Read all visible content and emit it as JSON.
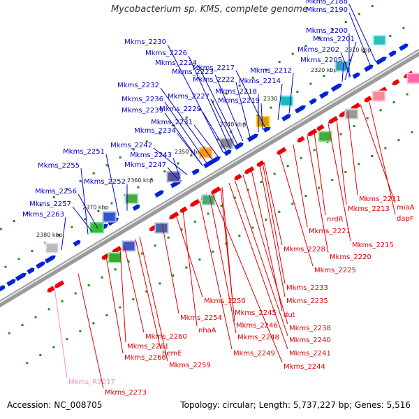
{
  "title": "Mycobacterium sp. KMS, complete genome",
  "footer": {
    "accession": "Accession: NC_008705",
    "topology": "Topology: circular; Length: 5,737,227 bp; Genes: 5,516"
  },
  "colors": {
    "top_label": "#0000cc",
    "bottom_label": "#dd0000",
    "rna_label": "#ff88cc",
    "forward_arrow": "#0022dd",
    "reverse_arrow": "#ee0000",
    "ticks": "#228822"
  },
  "kbp_ticks": [
    "2310 kbp",
    "2320 kbp",
    "2330 kbp",
    "2340 kbp",
    "2350 kbp",
    "2360 kbp",
    "2370 kbp",
    "2380 kbp"
  ],
  "top_labels": [
    "Mkms_2188",
    "Mkms_2190",
    "Mkms_2200",
    "Mkms_2201",
    "Mkms_2202",
    "Mkms_2205",
    "Mkms_2212",
    "Mkms_2214",
    "Mkms_2217",
    "Mkms_2218",
    "Mkms_2219",
    "Mkms_2222",
    "Mkms_2223",
    "Mkms_2224",
    "Mkms_2226",
    "Mkms_2227",
    "Mkms_2229",
    "Mkms_2230",
    "Mkms_2231",
    "Mkms_2232",
    "Mkms_2234",
    "Mkms_2236",
    "Mkms_2239",
    "Mkms_2242",
    "Mkms_2243",
    "Mkms_2247",
    "Mkms_2251",
    "Mkms_2252",
    "Mkms_2255",
    "Mkms_2256",
    "Mkms_2257",
    "Mkms_2263"
  ],
  "bottom_labels": [
    "Mkms_2211",
    "miaA",
    "Mkms_2213",
    "dapF",
    "nrdR",
    "Mkms_2221",
    "Mkms_2215",
    "Mkms_2228",
    "Mkms_2220",
    "Mkms_2225",
    "Mkms_2233",
    "Mkms_2235",
    "Mkms_2250",
    "Mkms_2245",
    "dut",
    "Mkms_2246",
    "Mkms_2238",
    "Mkms_2248",
    "Mkms_2240",
    "Mkms_2254",
    "nhaA",
    "Mkms_2241",
    "Mkms_2249",
    "Mkms_2260",
    "Mkms_2244",
    "Mkms_2261",
    "hemE",
    "Mkms_2266",
    "Mkms_2259",
    "Mkms_R0017",
    "Mkms_2273"
  ]
}
